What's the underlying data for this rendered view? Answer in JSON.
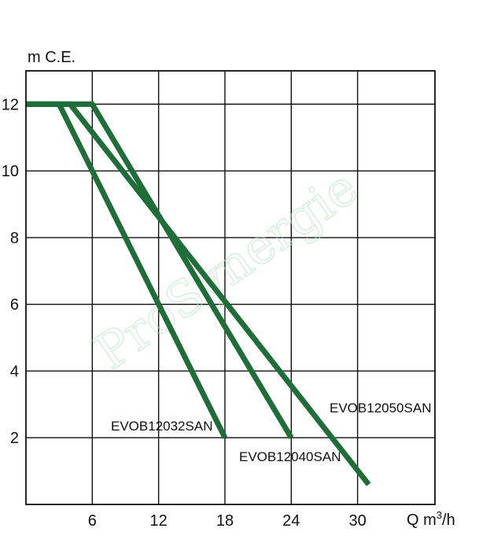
{
  "chart_data": {
    "type": "line",
    "ylabel": "m C.E.",
    "xlabel": "Q m",
    "xlabel_sup": "3",
    "xlabel_suffix": "/h",
    "x_ticks": [
      6,
      12,
      18,
      24,
      30
    ],
    "y_ticks": [
      2,
      4,
      6,
      8,
      10,
      12
    ],
    "xlim": [
      0,
      37
    ],
    "ylim": [
      0,
      13
    ],
    "grid": true,
    "line_color": "#1f6d39",
    "watermark": "ProSynergie",
    "series": [
      {
        "name": "EVOB12032SAN",
        "x": [
          0,
          3,
          18
        ],
        "y": [
          12,
          12,
          2
        ]
      },
      {
        "name": "EVOB12040SAN",
        "x": [
          0,
          6,
          24
        ],
        "y": [
          12,
          12,
          2
        ]
      },
      {
        "name": "EVOB12050SAN",
        "x": [
          0,
          4,
          31
        ],
        "y": [
          12,
          12,
          0.6
        ]
      }
    ]
  }
}
